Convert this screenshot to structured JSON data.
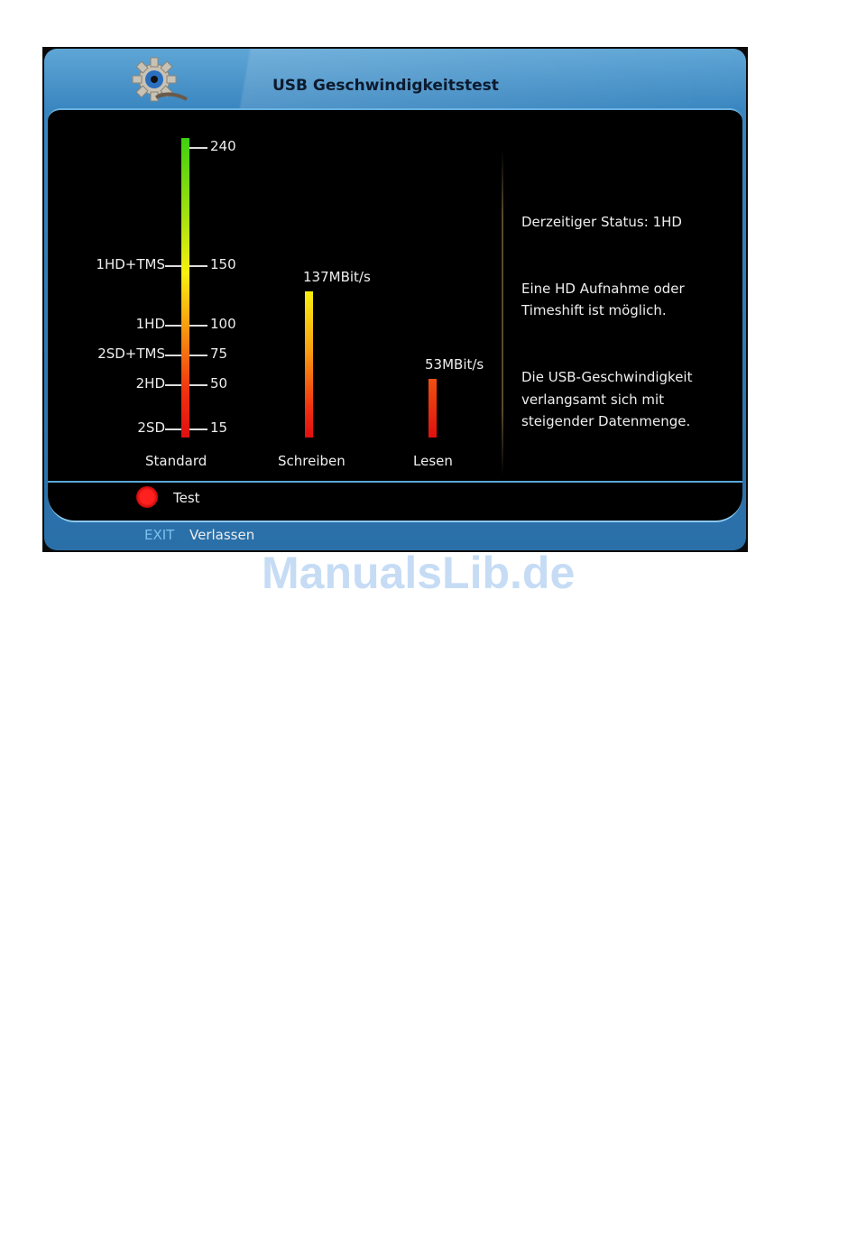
{
  "header": {
    "title": "USB Geschwindigkeitstest",
    "icon": "gear-eye-icon"
  },
  "scale": {
    "ticks": [
      {
        "value": "240",
        "label": ""
      },
      {
        "value": "150",
        "label": "1HD+TMS"
      },
      {
        "value": "100",
        "label": "1HD"
      },
      {
        "value": "75",
        "label": "2SD+TMS"
      },
      {
        "value": "50",
        "label": "2HD"
      },
      {
        "value": "15",
        "label": "2SD"
      }
    ],
    "caption": "Standard"
  },
  "write": {
    "caption": "Schreiben",
    "value_label": "137MBit/s",
    "value": 137
  },
  "read": {
    "caption": "Lesen",
    "value_label": "53MBit/s",
    "value": 53
  },
  "info": {
    "status": "Derzeitiger Status: 1HD",
    "line1a": "Eine HD Aufnahme oder",
    "line1b": "Timeshift ist möglich.",
    "line2a": "Die USB-Geschwindigkeit",
    "line2b": "verlangsamt sich mit",
    "line2c": "steigender Datenmenge."
  },
  "footer": {
    "red_label": "Test",
    "exit_key": "EXIT",
    "exit_label": "Verlassen"
  },
  "colors": {
    "red": "#ff2020",
    "blue": "#3a86c0",
    "exit_key": "#7fc0ee"
  },
  "watermark": "ManualsLib.de"
}
